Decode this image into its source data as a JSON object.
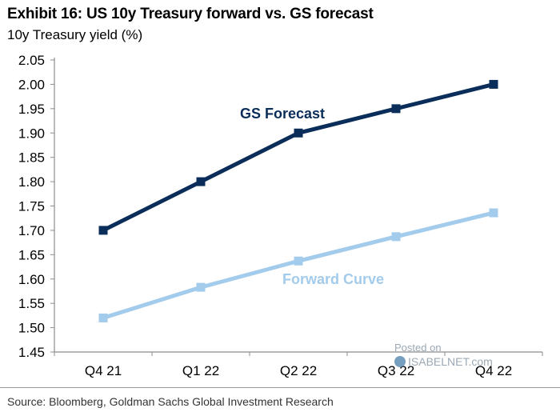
{
  "colors": {
    "gs": "#0b2d5a",
    "forward": "#a3cbeb",
    "axis": "#8c8c8c",
    "watermark": "#8a9aa8"
  },
  "chart_data": {
    "type": "line",
    "title": "Exhibit 16: US 10y Treasury forward vs. GS forecast",
    "ylabel": "10y Treasury yield (%)",
    "xlabel": "",
    "categories": [
      "Q4 21",
      "Q1 22",
      "Q2 22",
      "Q3 22",
      "Q4 22"
    ],
    "ylim": [
      1.45,
      2.05
    ],
    "yticks": [
      "1.45",
      "1.50",
      "1.55",
      "1.60",
      "1.65",
      "1.70",
      "1.75",
      "1.80",
      "1.85",
      "1.90",
      "1.95",
      "2.00",
      "2.05"
    ],
    "series": [
      {
        "key": "gs",
        "name": "GS Forecast",
        "values": [
          1.7,
          1.8,
          1.9,
          1.95,
          2.0
        ]
      },
      {
        "key": "forward",
        "name": "Forward Curve",
        "values": [
          1.52,
          1.583,
          1.637,
          1.687,
          1.736
        ]
      }
    ],
    "source": "Source: Bloomberg, Goldman Sachs Global Investment Research"
  },
  "watermark": {
    "line1": "Posted on",
    "line2": "ISABELNET.com"
  }
}
